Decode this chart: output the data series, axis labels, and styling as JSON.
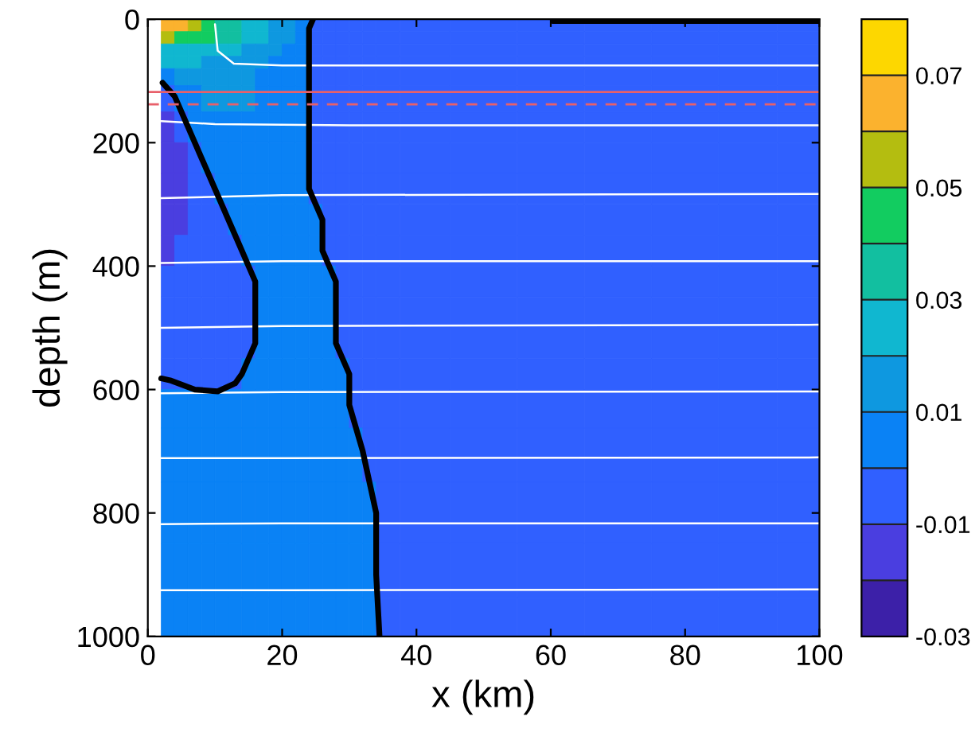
{
  "chart_data": {
    "type": "heatmap",
    "xlabel": "x (km)",
    "ylabel": "depth (m)",
    "x": [
      3,
      5,
      7,
      9,
      11,
      13,
      15,
      17,
      19,
      21,
      23,
      25,
      27,
      29,
      31,
      33,
      35,
      40,
      50,
      60,
      70,
      80,
      90,
      97.5
    ],
    "y": [
      10,
      30,
      50,
      70,
      90,
      125,
      175,
      225,
      275,
      325,
      375,
      425,
      475,
      525,
      575,
      625,
      700,
      800,
      900,
      975
    ],
    "cells": [
      [
        0.065,
        0.065,
        0.055,
        0.045,
        0.035,
        0.035,
        0.025,
        0.025,
        0.015,
        0.015,
        0.005,
        -0.005,
        -0.005,
        -0.005,
        -0.005,
        -0.005,
        -0.005,
        -0.005,
        -0.005,
        -0.005,
        -0.005,
        -0.005,
        -0.005,
        -0.005
      ],
      [
        0.055,
        0.045,
        0.045,
        0.045,
        0.035,
        0.035,
        0.025,
        0.025,
        0.015,
        0.015,
        0.005,
        -0.005,
        -0.005,
        -0.005,
        -0.005,
        -0.005,
        -0.005,
        -0.005,
        -0.005,
        -0.005,
        -0.005,
        -0.005,
        -0.005,
        -0.005
      ],
      [
        0.025,
        0.025,
        0.025,
        0.025,
        0.025,
        0.025,
        0.015,
        0.015,
        0.015,
        0.005,
        0.005,
        -0.005,
        -0.005,
        -0.005,
        -0.005,
        -0.005,
        -0.005,
        -0.005,
        -0.005,
        -0.005,
        -0.005,
        -0.005,
        -0.005,
        -0.005
      ],
      [
        0.025,
        0.025,
        0.025,
        0.015,
        0.015,
        0.015,
        0.015,
        0.015,
        0.005,
        0.005,
        0.005,
        -0.005,
        -0.005,
        -0.005,
        -0.005,
        -0.005,
        -0.005,
        -0.005,
        -0.005,
        -0.005,
        -0.005,
        -0.005,
        -0.005,
        -0.005
      ],
      [
        0.005,
        0.015,
        0.015,
        0.015,
        0.015,
        0.015,
        0.015,
        0.005,
        0.005,
        0.005,
        0.005,
        -0.005,
        -0.005,
        -0.005,
        -0.005,
        -0.005,
        -0.005,
        -0.005,
        -0.005,
        -0.005,
        -0.005,
        -0.005,
        -0.005,
        -0.005
      ],
      [
        -0.005,
        0.005,
        0.005,
        0.015,
        0.015,
        0.015,
        0.015,
        0.005,
        0.005,
        0.005,
        0.005,
        -0.005,
        -0.005,
        -0.005,
        -0.005,
        -0.005,
        -0.005,
        -0.005,
        -0.005,
        -0.005,
        -0.005,
        -0.005,
        -0.005,
        -0.005
      ],
      [
        -0.015,
        -0.005,
        0.005,
        0.005,
        0.005,
        0.005,
        0.005,
        0.005,
        0.005,
        0.005,
        0.005,
        -0.005,
        -0.005,
        -0.005,
        -0.005,
        -0.005,
        -0.005,
        -0.005,
        -0.005,
        -0.005,
        -0.005,
        -0.005,
        -0.005,
        -0.005
      ],
      [
        -0.015,
        -0.015,
        -0.005,
        0.005,
        0.005,
        0.005,
        0.005,
        0.005,
        0.005,
        0.005,
        0.005,
        -0.005,
        -0.005,
        -0.005,
        -0.005,
        -0.005,
        -0.005,
        -0.005,
        -0.005,
        -0.005,
        -0.005,
        -0.005,
        -0.005,
        -0.005
      ],
      [
        -0.015,
        -0.015,
        -0.005,
        -0.005,
        0.005,
        0.005,
        0.005,
        0.005,
        0.005,
        0.005,
        0.005,
        -0.005,
        -0.005,
        -0.005,
        -0.005,
        -0.005,
        -0.005,
        -0.005,
        -0.005,
        -0.005,
        -0.005,
        -0.005,
        -0.005,
        -0.005
      ],
      [
        -0.015,
        -0.015,
        -0.005,
        -0.005,
        -0.005,
        0.005,
        0.005,
        0.005,
        0.005,
        0.005,
        0.005,
        0.005,
        -0.005,
        -0.005,
        -0.005,
        -0.005,
        -0.005,
        -0.005,
        -0.005,
        -0.005,
        -0.005,
        -0.005,
        -0.005,
        -0.005
      ],
      [
        -0.015,
        -0.005,
        -0.005,
        -0.005,
        -0.005,
        -0.005,
        0.005,
        0.005,
        0.005,
        0.005,
        0.005,
        0.005,
        -0.005,
        -0.005,
        -0.005,
        -0.005,
        -0.005,
        -0.005,
        -0.005,
        -0.005,
        -0.005,
        -0.005,
        -0.005,
        -0.005
      ],
      [
        -0.005,
        -0.005,
        -0.005,
        -0.005,
        -0.005,
        -0.005,
        -0.005,
        0.005,
        0.005,
        0.005,
        0.005,
        0.005,
        0.005,
        -0.005,
        -0.005,
        -0.005,
        -0.005,
        -0.005,
        -0.005,
        -0.005,
        -0.005,
        -0.005,
        -0.005,
        -0.005
      ],
      [
        -0.005,
        -0.005,
        -0.005,
        -0.005,
        -0.005,
        -0.005,
        -0.005,
        0.005,
        0.005,
        0.005,
        0.005,
        0.005,
        0.005,
        -0.005,
        -0.005,
        -0.005,
        -0.005,
        -0.005,
        -0.005,
        -0.005,
        -0.005,
        -0.005,
        -0.005,
        -0.005
      ],
      [
        -0.005,
        -0.005,
        -0.005,
        -0.005,
        -0.005,
        -0.005,
        -0.005,
        0.005,
        0.005,
        0.005,
        0.005,
        0.005,
        0.005,
        -0.005,
        -0.005,
        -0.005,
        -0.005,
        -0.005,
        -0.005,
        -0.005,
        -0.005,
        -0.005,
        -0.005,
        -0.005
      ],
      [
        -0.005,
        -0.005,
        -0.005,
        -0.005,
        -0.005,
        -0.005,
        0.005,
        0.005,
        0.005,
        0.005,
        0.005,
        0.005,
        0.005,
        0.005,
        -0.005,
        -0.005,
        -0.005,
        -0.005,
        -0.005,
        -0.005,
        -0.005,
        -0.005,
        -0.005,
        -0.005
      ],
      [
        0.005,
        0.005,
        0.005,
        0.005,
        0.005,
        0.005,
        0.005,
        0.005,
        0.005,
        0.005,
        0.005,
        0.005,
        0.005,
        0.005,
        -0.005,
        -0.005,
        -0.005,
        -0.005,
        -0.005,
        -0.005,
        -0.005,
        -0.005,
        -0.005,
        -0.005
      ],
      [
        0.005,
        0.005,
        0.005,
        0.005,
        0.005,
        0.005,
        0.005,
        0.005,
        0.005,
        0.005,
        0.005,
        0.005,
        0.005,
        0.005,
        0.005,
        -0.005,
        -0.005,
        -0.005,
        -0.005,
        -0.005,
        -0.005,
        -0.005,
        -0.005,
        -0.005
      ],
      [
        0.005,
        0.005,
        0.005,
        0.005,
        0.005,
        0.005,
        0.005,
        0.005,
        0.005,
        0.005,
        0.005,
        0.005,
        0.005,
        0.005,
        0.005,
        0.005,
        -0.005,
        -0.005,
        -0.005,
        -0.005,
        -0.005,
        -0.005,
        -0.005,
        -0.005
      ],
      [
        0.005,
        0.005,
        0.005,
        0.005,
        0.005,
        0.005,
        0.005,
        0.005,
        0.005,
        0.005,
        0.005,
        0.005,
        0.005,
        0.005,
        0.005,
        0.005,
        -0.005,
        -0.005,
        -0.005,
        -0.005,
        -0.005,
        -0.005,
        -0.005,
        -0.005
      ],
      [
        0.005,
        0.005,
        0.005,
        0.005,
        0.005,
        0.005,
        0.005,
        0.005,
        0.005,
        0.005,
        0.005,
        0.005,
        0.005,
        0.005,
        0.005,
        0.005,
        -0.005,
        -0.005,
        -0.005,
        -0.005,
        -0.005,
        -0.005,
        -0.005,
        -0.005
      ]
    ],
    "colors": [
      "#3c20a8",
      "#4a3ee0",
      "#3060ff",
      "#0a82f5",
      "#0e98e0",
      "#10b7d0",
      "#12bfa0",
      "#12cc60",
      "#b4bd10",
      "#fbb22e",
      "#fdd700"
    ],
    "clim": [
      -0.03,
      0.08
    ],
    "cticks": [
      -0.03,
      -0.01,
      0.01,
      0.03,
      0.05,
      0.07
    ],
    "series": [
      {
        "type": "line",
        "color": "#ffffff",
        "x": [
          10,
          10.4,
          12.8,
          20,
          100
        ],
        "values": [
          8,
          51,
          72,
          75,
          75
        ]
      },
      {
        "type": "line",
        "color": "#ffffff",
        "x": [
          2,
          10,
          30,
          100
        ],
        "values": [
          165,
          170,
          172,
          172
        ]
      },
      {
        "type": "line",
        "color": "#ffffff",
        "x": [
          2,
          20,
          100
        ],
        "values": [
          290,
          285,
          283
        ]
      },
      {
        "type": "line",
        "color": "#ffffff",
        "x": [
          2,
          20,
          100
        ],
        "values": [
          395,
          392,
          392
        ]
      },
      {
        "type": "line",
        "color": "#ffffff",
        "x": [
          2,
          20,
          100
        ],
        "values": [
          500,
          497,
          495
        ]
      },
      {
        "type": "line",
        "color": "#ffffff",
        "x": [
          2,
          20,
          100
        ],
        "values": [
          606,
          604,
          603
        ]
      },
      {
        "type": "line",
        "color": "#ffffff",
        "x": [
          2,
          20,
          100
        ],
        "values": [
          711,
          711,
          710
        ]
      },
      {
        "type": "line",
        "color": "#ffffff",
        "x": [
          2,
          20,
          100
        ],
        "values": [
          818,
          817,
          817
        ]
      },
      {
        "type": "line",
        "color": "#ffffff",
        "x": [
          2,
          20,
          100
        ],
        "values": [
          925,
          925,
          924
        ]
      },
      {
        "type": "line",
        "color": "#000000",
        "x": [
          2.2,
          4,
          6,
          8,
          10,
          12,
          14,
          16,
          16,
          16,
          14,
          13,
          10.4,
          7,
          3.3,
          2
        ],
        "values": [
          103,
          125,
          175,
          225,
          275,
          325,
          375,
          425,
          475,
          525,
          575,
          590,
          603,
          600,
          585,
          582
        ]
      },
      {
        "type": "line",
        "color": "#000000",
        "x": [
          24.6,
          24,
          24,
          24,
          24,
          24,
          26,
          26,
          28,
          28,
          28,
          30,
          30,
          32,
          34,
          34,
          34.5
        ],
        "values": [
          0,
          15,
          54,
          120,
          183,
          275,
          325,
          375,
          425,
          475,
          525,
          575,
          625,
          700,
          800,
          900,
          1000
        ]
      },
      {
        "type": "line",
        "color": "#000000",
        "x": [
          60.4,
          80,
          100
        ],
        "values": [
          3,
          3,
          3
        ]
      }
    ],
    "ref_lines": [
      {
        "axis": "y",
        "value": 118,
        "color": "#e8606a",
        "line_style": "solid"
      },
      {
        "axis": "y",
        "value": 138,
        "color": "#e8606a",
        "line_style": "dashed"
      }
    ],
    "xlim": [
      0,
      100
    ],
    "xticks": [
      0,
      20,
      40,
      60,
      80,
      100
    ],
    "ylim": [
      1000,
      0
    ],
    "yticks": [
      0,
      200,
      400,
      600,
      800,
      1000
    ]
  }
}
